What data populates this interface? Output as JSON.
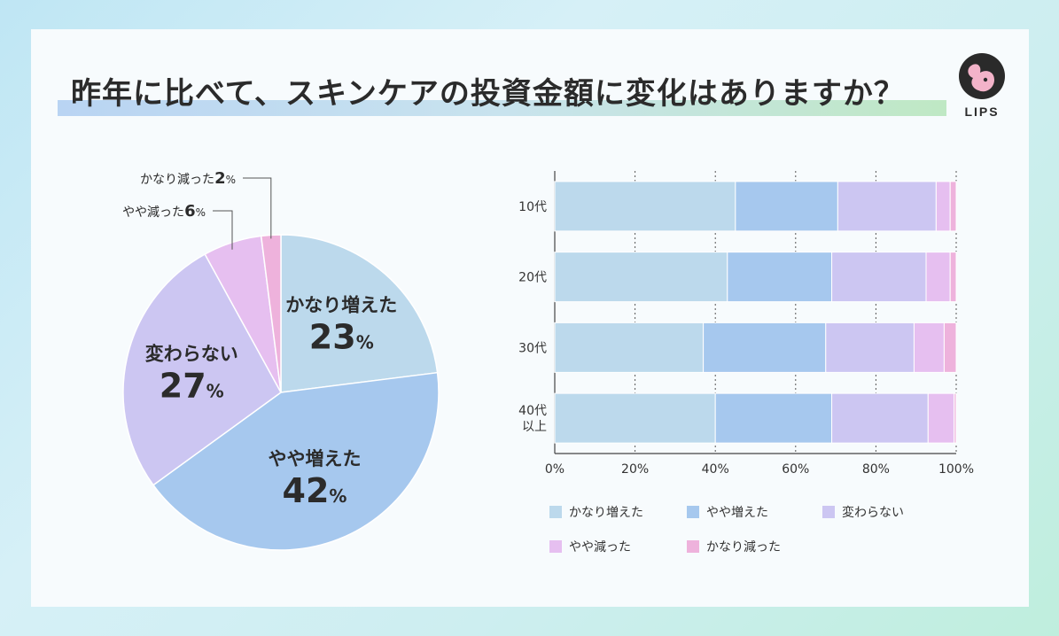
{
  "title": "昨年に比べて、スキンケアの投資金額に変化はありますか？",
  "logo_text": "LIPS",
  "colors": {
    "kanari_fueta": "#bcd9ec",
    "yaya_fueta": "#a6c8ee",
    "kawaranai": "#ccc6f2",
    "yaya_hetta": "#e6bff0",
    "kanari_hetta": "#eeb2dc"
  },
  "chart_data": [
    {
      "type": "pie",
      "slices": [
        {
          "label": "かなり増えた",
          "value": 23,
          "value_text": "23",
          "unit": "%",
          "color_key": "kanari_fueta"
        },
        {
          "label": "やや増えた",
          "value": 42,
          "value_text": "42",
          "unit": "%",
          "color_key": "yaya_fueta"
        },
        {
          "label": "変わらない",
          "value": 27,
          "value_text": "27",
          "unit": "%",
          "color_key": "kawaranai"
        },
        {
          "label": "やや減った",
          "value": 6,
          "value_text": "6",
          "unit": "%",
          "color_key": "yaya_hetta"
        },
        {
          "label": "かなり減った",
          "value": 2,
          "value_text": "2",
          "unit": "%",
          "color_key": "kanari_hetta"
        }
      ]
    },
    {
      "type": "bar",
      "orientation": "horizontal",
      "stacked": true,
      "categories": [
        "10代",
        "20代",
        "30代",
        "40代\n以上"
      ],
      "series": [
        {
          "name": "かなり増えた",
          "color_key": "kanari_fueta",
          "values": [
            45,
            43,
            37,
            40
          ]
        },
        {
          "name": "やや増えた",
          "color_key": "yaya_fueta",
          "values": [
            25.5,
            26,
            30.5,
            29
          ]
        },
        {
          "name": "変わらない",
          "color_key": "kawaranai",
          "values": [
            24.5,
            23.5,
            22,
            24
          ]
        },
        {
          "name": "やや減った",
          "color_key": "yaya_hetta",
          "values": [
            3.5,
            6,
            7.5,
            6.5
          ]
        },
        {
          "name": "かなり減った",
          "color_key": "kanari_hetta",
          "values": [
            1.5,
            1.5,
            3,
            0.5
          ]
        }
      ],
      "xlim": [
        0,
        100
      ],
      "x_ticks": [
        "0%",
        "20%",
        "40%",
        "60%",
        "80%",
        "100%"
      ],
      "grid": "vertical dashed",
      "legend_position": "bottom"
    }
  ]
}
